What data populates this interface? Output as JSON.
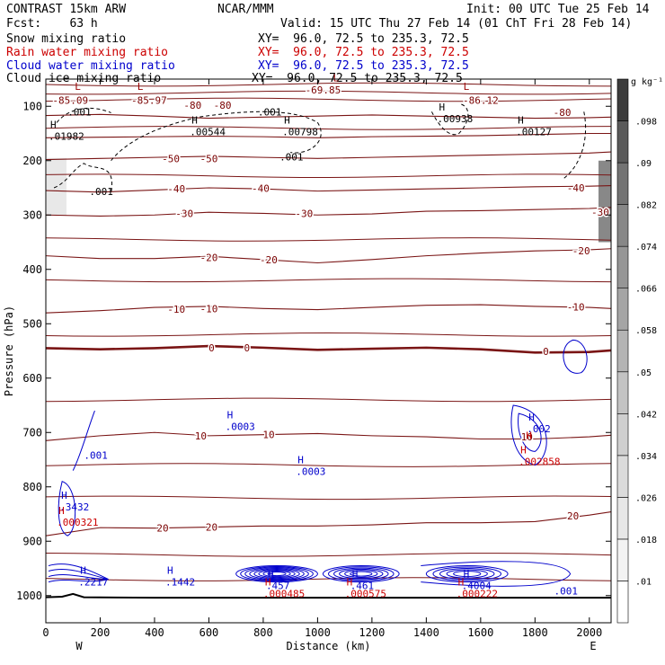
{
  "header": {
    "model": "CONTRAST 15km ARW",
    "fcst": "Fcst:    63 h",
    "center": "NCAR/MMM",
    "init": "Init: 00 UTC Tue 25 Feb 14",
    "valid": "Valid: 15 UTC Thu 27 Feb 14 (01 ChT Fri 28 Feb 14)",
    "fields": [
      {
        "name": "Snow mixing ratio",
        "xy": "XY=  96.0, 72.5 to 235.3, 72.5",
        "color": "#000000"
      },
      {
        "name": "Rain water mixing ratio",
        "xy": "XY=  96.0, 72.5 to 235.3, 72.5",
        "color": "#cc0000"
      },
      {
        "name": "Cloud water mixing ratio",
        "xy": "XY=  96.0, 72.5 to 235.3, 72.5",
        "color": "#0000cc"
      },
      {
        "name": "Cloud ice mixing ratio",
        "xy": "XY=  96.0, 72.5 to 235.3, 72.5",
        "color": "#000000"
      }
    ]
  },
  "chart_data": {
    "type": "contour cross-section",
    "xlabel": "Distance (km)",
    "ylabel": "Pressure (hPa)",
    "xlim": [
      0,
      2080
    ],
    "ylim": [
      1050,
      50
    ],
    "x_ticks": [
      0,
      200,
      400,
      600,
      800,
      1000,
      1200,
      1400,
      1600,
      1800,
      2000
    ],
    "y_ticks": [
      100,
      200,
      300,
      400,
      500,
      600,
      700,
      800,
      900,
      1000
    ],
    "end_labels": {
      "left": "W",
      "right": "E"
    },
    "colorbar": {
      "unit": "g kg⁻¹",
      "ticks": [
        ".01",
        ".018",
        ".026",
        ".034",
        ".042",
        ".05",
        ".058",
        ".066",
        ".074",
        ".082",
        ".09",
        ".098"
      ],
      "colors": [
        "#ffffff",
        "#f3f3f3",
        "#e7e7e7",
        "#dbdbdb",
        "#cfcfcf",
        "#c3c3c3",
        "#b4b4b4",
        "#a5a5a5",
        "#969696",
        "#878787",
        "#737373",
        "#5a5a5a",
        "#3c3c3c"
      ]
    },
    "temperature_contours_C": [
      {
        "value": 0,
        "label": "0",
        "thick": true,
        "points": [
          [
            0,
            545
          ],
          [
            200,
            547
          ],
          [
            400,
            545
          ],
          [
            600,
            541
          ],
          [
            800,
            544
          ],
          [
            1000,
            548
          ],
          [
            1200,
            546
          ],
          [
            1400,
            544
          ],
          [
            1600,
            547
          ],
          [
            1800,
            553
          ],
          [
            2000,
            552
          ],
          [
            2080,
            549
          ]
        ]
      },
      {
        "value": -10,
        "label": "-10",
        "points": [
          [
            0,
            480
          ],
          [
            200,
            476
          ],
          [
            400,
            470
          ],
          [
            600,
            468
          ],
          [
            800,
            472
          ],
          [
            1000,
            474
          ],
          [
            1200,
            470
          ],
          [
            1400,
            466
          ],
          [
            1600,
            465
          ],
          [
            1800,
            468
          ],
          [
            2000,
            470
          ],
          [
            2080,
            472
          ]
        ]
      },
      {
        "value": -20,
        "label": "-20",
        "points": [
          [
            0,
            375
          ],
          [
            200,
            380
          ],
          [
            400,
            380
          ],
          [
            600,
            376
          ],
          [
            800,
            382
          ],
          [
            1000,
            388
          ],
          [
            1200,
            382
          ],
          [
            1400,
            375
          ],
          [
            1600,
            370
          ],
          [
            1800,
            366
          ],
          [
            2000,
            364
          ],
          [
            2080,
            362
          ]
        ]
      },
      {
        "value": -30,
        "label": "-30",
        "points": [
          [
            0,
            300
          ],
          [
            200,
            302
          ],
          [
            400,
            300
          ],
          [
            600,
            295
          ],
          [
            800,
            297
          ],
          [
            1000,
            300
          ],
          [
            1200,
            298
          ],
          [
            1400,
            293
          ],
          [
            1600,
            292
          ],
          [
            1800,
            290
          ],
          [
            2000,
            288
          ],
          [
            2080,
            286
          ]
        ]
      },
      {
        "value": -40,
        "label": "-40",
        "points": [
          [
            0,
            255
          ],
          [
            200,
            258
          ],
          [
            400,
            254
          ],
          [
            600,
            250
          ],
          [
            800,
            252
          ],
          [
            1000,
            256
          ],
          [
            1200,
            254
          ],
          [
            1400,
            252
          ],
          [
            1600,
            250
          ],
          [
            1800,
            248
          ],
          [
            2000,
            247
          ],
          [
            2080,
            246
          ]
        ]
      },
      {
        "value": -50,
        "label": "-50",
        "points": [
          [
            0,
            198
          ],
          [
            200,
            196
          ],
          [
            400,
            194
          ],
          [
            600,
            192
          ],
          [
            800,
            194
          ],
          [
            1000,
            196
          ],
          [
            1200,
            194
          ],
          [
            1400,
            192
          ],
          [
            1600,
            190
          ],
          [
            1800,
            188
          ],
          [
            2000,
            186
          ],
          [
            2080,
            184
          ]
        ]
      },
      {
        "value": -60,
        "label": "",
        "points": [
          [
            0,
            158
          ],
          [
            200,
            157
          ],
          [
            400,
            156
          ],
          [
            600,
            155
          ],
          [
            800,
            156
          ],
          [
            1000,
            158
          ],
          [
            1200,
            156
          ],
          [
            1400,
            155
          ],
          [
            1600,
            154
          ],
          [
            1800,
            152
          ],
          [
            2000,
            150
          ],
          [
            2080,
            150
          ]
        ]
      },
      {
        "value": -80,
        "label": "-80",
        "points": [
          [
            0,
            117
          ],
          [
            200,
            115
          ],
          [
            400,
            118
          ],
          [
            600,
            122
          ],
          [
            800,
            120
          ],
          [
            1000,
            118
          ],
          [
            1200,
            116
          ],
          [
            1400,
            118
          ],
          [
            1600,
            120
          ],
          [
            1800,
            122
          ],
          [
            2000,
            121
          ],
          [
            2080,
            120
          ]
        ]
      },
      {
        "value": 10,
        "label": "10",
        "points": [
          [
            0,
            715
          ],
          [
            200,
            706
          ],
          [
            400,
            700
          ],
          [
            600,
            706
          ],
          [
            800,
            704
          ],
          [
            1000,
            702
          ],
          [
            1200,
            706
          ],
          [
            1400,
            708
          ],
          [
            1600,
            712
          ],
          [
            1800,
            712
          ],
          [
            2000,
            708
          ],
          [
            2080,
            705
          ]
        ]
      },
      {
        "value": 20,
        "label": "20",
        "points": [
          [
            0,
            890
          ],
          [
            200,
            875
          ],
          [
            400,
            876
          ],
          [
            600,
            874
          ],
          [
            800,
            872
          ],
          [
            1000,
            872
          ],
          [
            1200,
            870
          ],
          [
            1400,
            866
          ],
          [
            1600,
            866
          ],
          [
            1800,
            864
          ],
          [
            2000,
            852
          ],
          [
            2080,
            846
          ]
        ]
      }
    ],
    "extra_isotherms_p": [
      60,
      75,
      88,
      140,
      228,
      345,
      420,
      520,
      640,
      760,
      820,
      925,
      970
    ],
    "contour_labels": [
      {
        "text": "-69.85",
        "x": 1020,
        "p": 70
      },
      {
        "text": "-85.09",
        "x": 90,
        "p": 89
      },
      {
        "text": "-85.97",
        "x": 380,
        "p": 89
      },
      {
        "text": "-86.12",
        "x": 1600,
        "p": 89
      },
      {
        "text": "-80",
        "x": 540,
        "p": 98
      },
      {
        "text": "-80",
        "x": 650,
        "p": 98
      },
      {
        "text": "-80",
        "x": 1900,
        "p": 111
      },
      {
        "text": "-50",
        "x": 460,
        "p": 196
      },
      {
        "text": "-50",
        "x": 600,
        "p": 196
      },
      {
        "text": "-40",
        "x": 480,
        "p": 252
      },
      {
        "text": "-40",
        "x": 790,
        "p": 251
      },
      {
        "text": "-40",
        "x": 1950,
        "p": 250
      },
      {
        "text": "-30",
        "x": 510,
        "p": 297
      },
      {
        "text": "-30",
        "x": 950,
        "p": 297
      },
      {
        "text": "-30",
        "x": 2040,
        "p": 295
      },
      {
        "text": "-20",
        "x": 600,
        "p": 378
      },
      {
        "text": "-20",
        "x": 820,
        "p": 382
      },
      {
        "text": "-20",
        "x": 1970,
        "p": 366
      },
      {
        "text": "-10",
        "x": 480,
        "p": 473
      },
      {
        "text": "-10",
        "x": 600,
        "p": 472
      },
      {
        "text": "-10",
        "x": 1950,
        "p": 469
      },
      {
        "text": "0",
        "x": 610,
        "p": 544
      },
      {
        "text": "0",
        "x": 740,
        "p": 544
      },
      {
        "text": "0",
        "x": 1840,
        "p": 551
      },
      {
        "text": "10",
        "x": 570,
        "p": 706
      },
      {
        "text": "10",
        "x": 820,
        "p": 704
      },
      {
        "text": "10",
        "x": 1770,
        "p": 708
      },
      {
        "text": "20",
        "x": 430,
        "p": 876
      },
      {
        "text": "20",
        "x": 610,
        "p": 874
      },
      {
        "text": "20",
        "x": 1940,
        "p": 853
      }
    ],
    "extrema": [
      {
        "mark": "L",
        "x": 100,
        "p": 78,
        "color": "#990000"
      },
      {
        "mark": "L",
        "x": 330,
        "p": 78,
        "color": "#990000"
      },
      {
        "mark": "L",
        "x": 1530,
        "p": 78,
        "color": "#990000"
      },
      {
        "mark": "L",
        "x": 1050,
        "p": 62,
        "color": "#990000"
      },
      {
        "mark": "H",
        "x": 10,
        "p": 148,
        "label": ".01982",
        "color": "#000000"
      },
      {
        "mark": "H",
        "x": 530,
        "p": 140,
        "label": ".00544",
        "color": "#000000"
      },
      {
        "mark": "H",
        "x": 870,
        "p": 140,
        "label": ".00798",
        "color": "#000000"
      },
      {
        "mark": "H",
        "x": 1440,
        "p": 116,
        "label": ".00938",
        "color": "#000000"
      },
      {
        "mark": "H",
        "x": 1730,
        "p": 140,
        "label": ".00127",
        "color": "#000000"
      },
      {
        "mark": "",
        "x": 80,
        "p": 104,
        "label": ".001",
        "color": "#000000"
      },
      {
        "mark": "",
        "x": 780,
        "p": 104,
        "label": ".001",
        "color": "#000000"
      },
      {
        "mark": "",
        "x": 860,
        "p": 186,
        "label": ".001",
        "color": "#000000"
      },
      {
        "mark": "",
        "x": 160,
        "p": 250,
        "label": ".001",
        "color": "#000000"
      },
      {
        "mark": "H",
        "x": 660,
        "p": 682,
        "label": ".0003",
        "color": "#0000cc"
      },
      {
        "mark": "H",
        "x": 920,
        "p": 765,
        "label": ".0003",
        "color": "#0000cc"
      },
      {
        "mark": "",
        "x": 140,
        "p": 735,
        "label": ".001",
        "color": "#0000cc"
      },
      {
        "mark": "H",
        "x": 50,
        "p": 830,
        "label": ".3432",
        "color": "#0000cc"
      },
      {
        "mark": "H",
        "x": 1770,
        "p": 686,
        "label": ".002",
        "color": "#0000cc"
      },
      {
        "mark": "H",
        "x": 120,
        "p": 968,
        "label": ".2217",
        "color": "#0000cc"
      },
      {
        "mark": "H",
        "x": 440,
        "p": 968,
        "label": ".1442",
        "color": "#0000cc"
      },
      {
        "mark": "H",
        "x": 810,
        "p": 975,
        "label": ".457",
        "color": "#0000cc"
      },
      {
        "mark": "H",
        "x": 1120,
        "p": 975,
        "label": ".461",
        "color": "#0000cc"
      },
      {
        "mark": "H",
        "x": 1530,
        "p": 975,
        "label": ".4004",
        "color": "#0000cc"
      },
      {
        "mark": "",
        "x": 1870,
        "p": 985,
        "label": ".001",
        "color": "#0000cc"
      },
      {
        "mark": "H",
        "x": 40,
        "p": 858,
        "label": ".000321",
        "color": "#cc0000"
      },
      {
        "mark": "H",
        "x": 1740,
        "p": 747,
        "label": ".002858",
        "color": "#cc0000"
      },
      {
        "mark": "H",
        "x": 800,
        "p": 990,
        "label": ".000485",
        "color": "#cc0000"
      },
      {
        "mark": "H",
        "x": 1100,
        "p": 990,
        "label": ".000575",
        "color": "#cc0000"
      },
      {
        "mark": "H",
        "x": 1510,
        "p": 990,
        "label": ".000222",
        "color": "#cc0000"
      },
      {
        "mark": "H",
        "x": 1760,
        "p": 720,
        "label": "",
        "color": "#cc0000"
      }
    ]
  }
}
